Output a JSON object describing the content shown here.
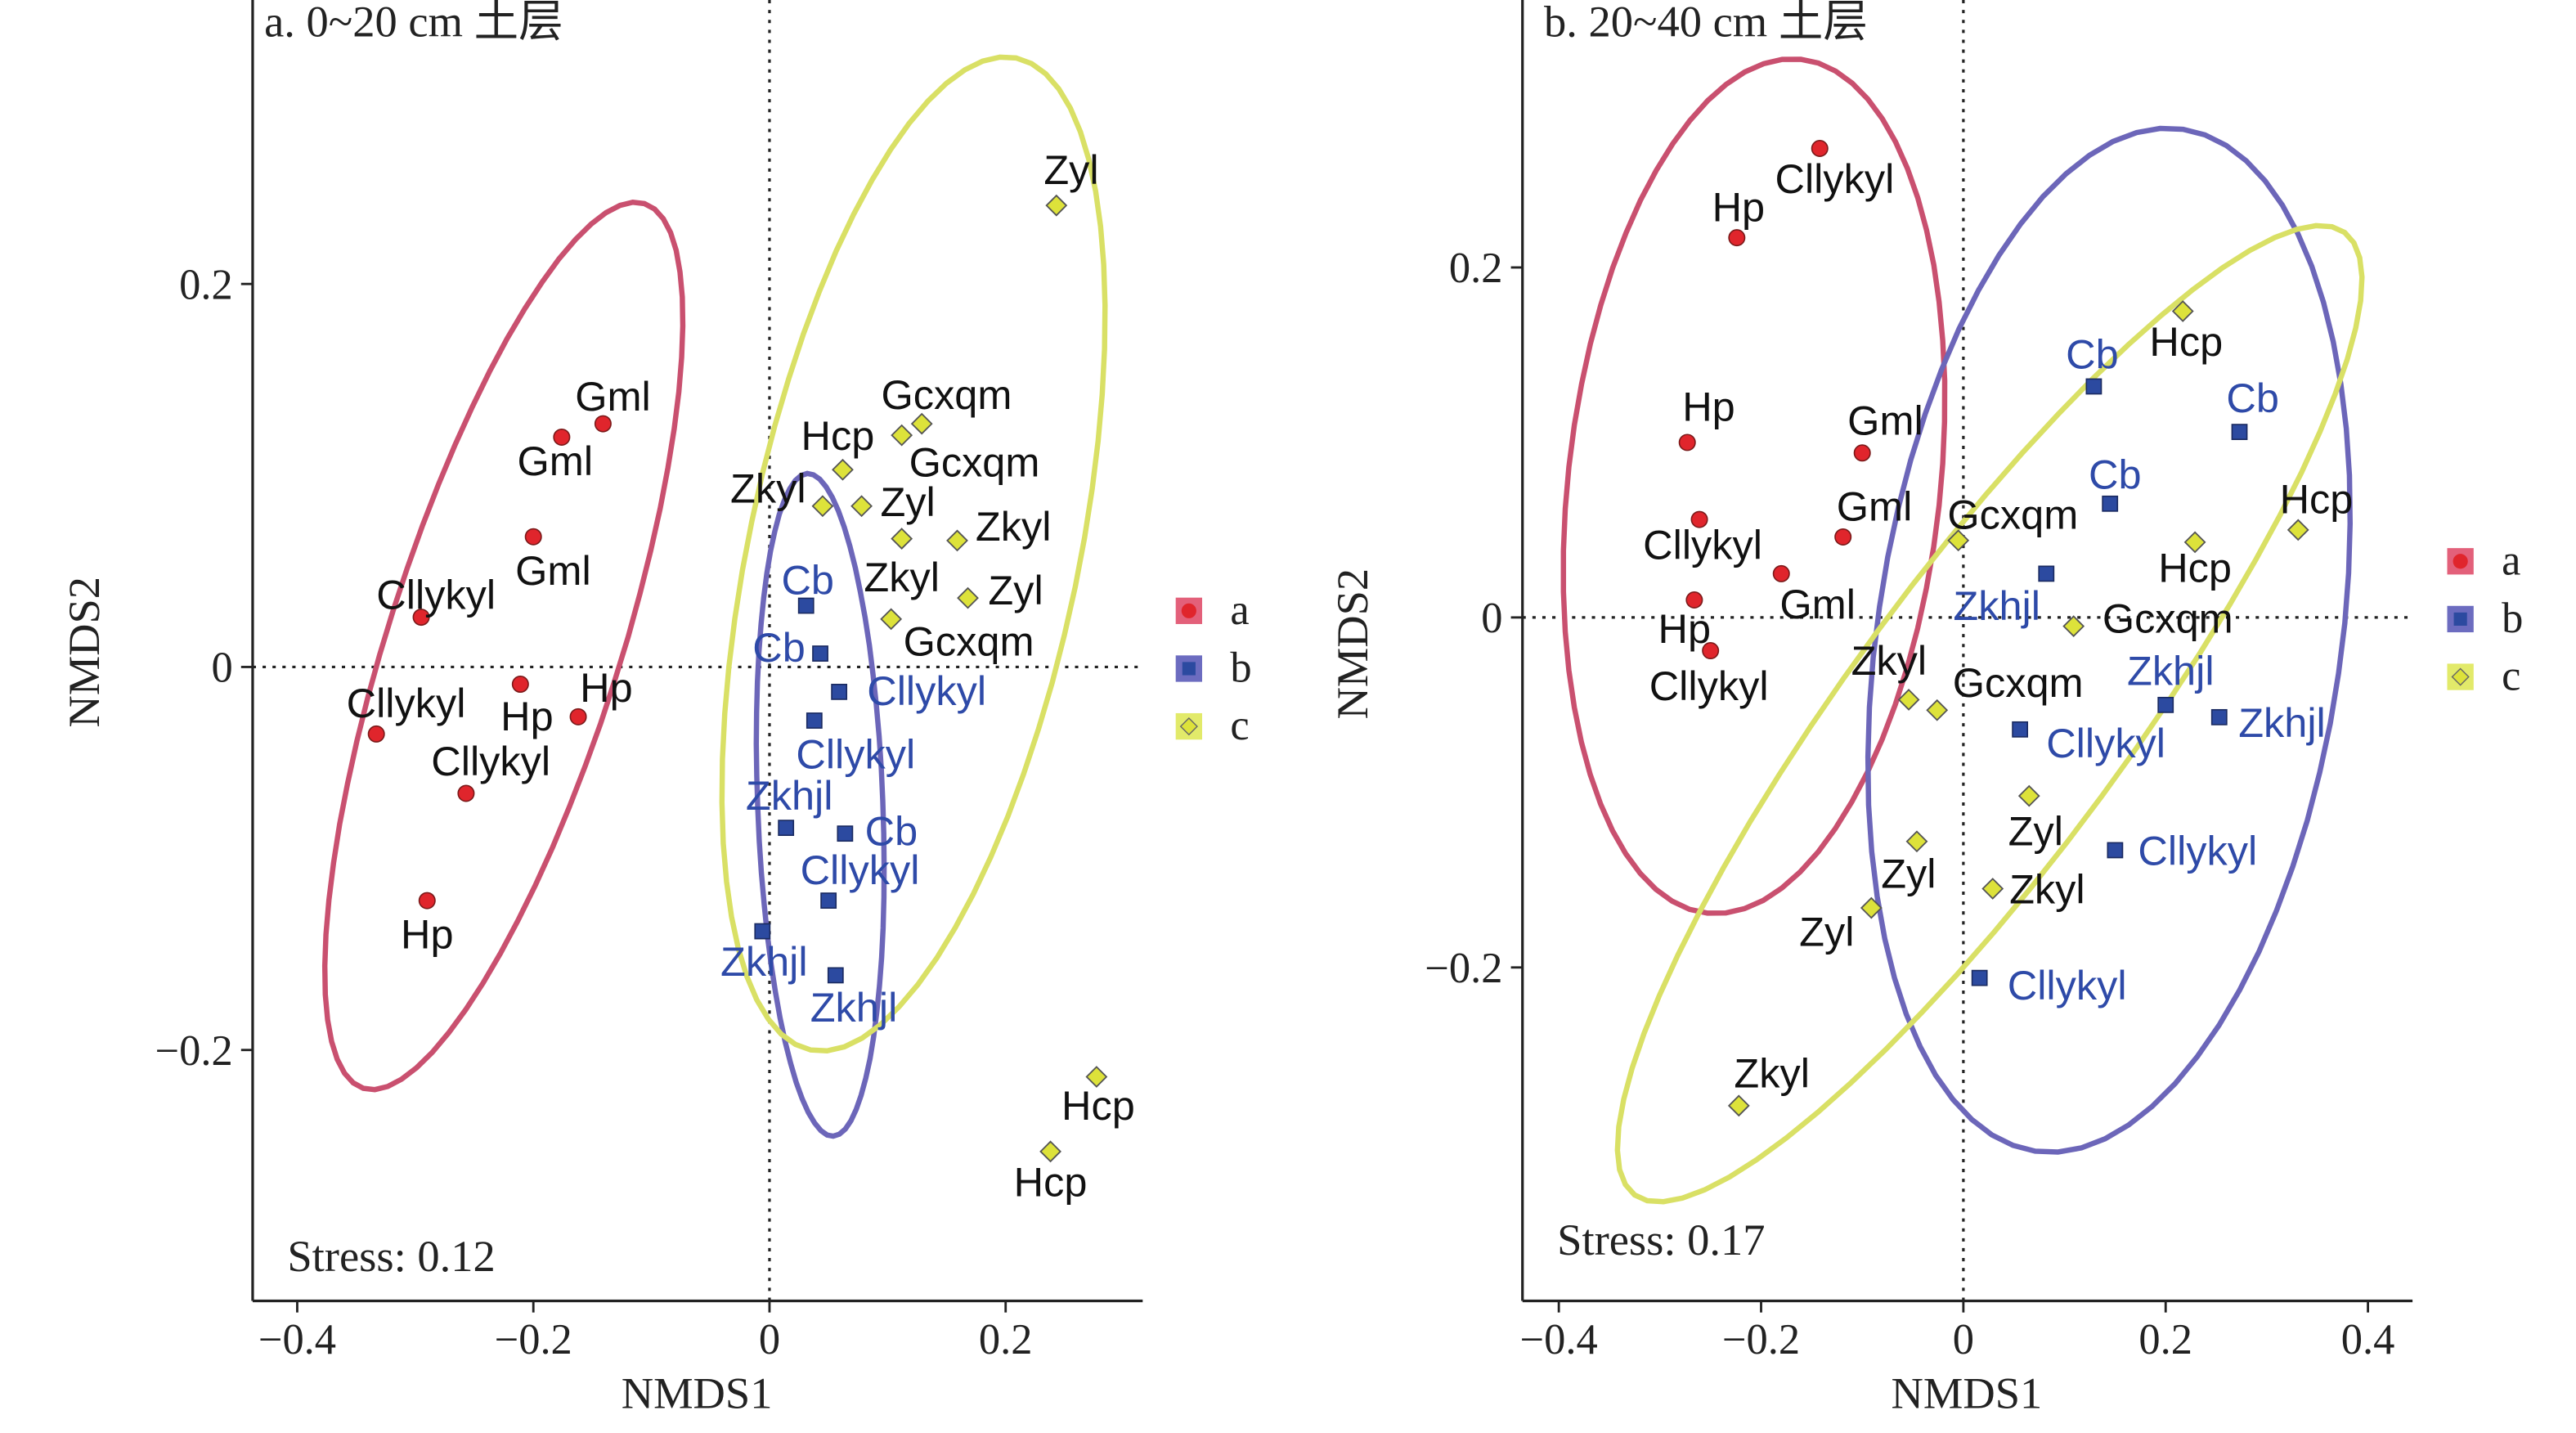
{
  "colors": {
    "a": {
      "point": "#e0252c",
      "ellipse": "#c9506f",
      "legend_bg": "#e3607a",
      "label": "#111111"
    },
    "b": {
      "point": "#2c4aa0",
      "ellipse": "#6c66b9",
      "legend_bg": "#6c6cc0",
      "label": "#2e4aa8"
    },
    "c": {
      "point": "#dde23a",
      "ellipse": "#d9e065",
      "legend_bg": "#e2ea6a",
      "label": "#111111"
    }
  },
  "chart_data": [
    {
      "type": "scatter",
      "title": "a. 0~20 cm 土层",
      "xlabel": "NMDS1",
      "ylabel": "NMDS2",
      "xlim": [
        -0.43,
        0.32
      ],
      "ylim": [
        -0.33,
        0.35
      ],
      "xticks": [
        "−0.4",
        "−0.2",
        "0",
        "0.2"
      ],
      "xtick_values": [
        -0.4,
        -0.2,
        0,
        0.2
      ],
      "yticks": [
        "−0.2",
        "0",
        "0.2"
      ],
      "ytick_values": [
        -0.2,
        0,
        0.2
      ],
      "annotation": "Stress: 0.12",
      "legend": [
        "a",
        "b",
        "c"
      ],
      "legend_position": "right",
      "series": [
        {
          "name": "a",
          "marker": "circle",
          "points": [
            {
              "label": "Gml",
              "x": -0.141,
              "y": 0.127
            },
            {
              "label": "Gml",
              "x": -0.176,
              "y": 0.12
            },
            {
              "label": "Gml",
              "x": -0.2,
              "y": 0.068
            },
            {
              "label": "Cllykyl",
              "x": -0.295,
              "y": 0.026
            },
            {
              "label": "Hp",
              "x": -0.211,
              "y": -0.009
            },
            {
              "label": "Hp",
              "x": -0.162,
              "y": -0.026
            },
            {
              "label": "Cllykyl",
              "x": -0.333,
              "y": -0.035
            },
            {
              "label": "Cllykyl",
              "x": -0.257,
              "y": -0.066
            },
            {
              "label": "Hp",
              "x": -0.29,
              "y": -0.122
            }
          ],
          "ellipse": {
            "center": [
              -0.225,
              0.011
            ],
            "axis1": [
              0.119,
              0.231
            ],
            "axis2": [
              0.094,
              -0.018
            ]
          }
        },
        {
          "name": "b",
          "marker": "square",
          "points": [
            {
              "label": "Cb",
              "x": 0.031,
              "y": 0.032
            },
            {
              "label": "Cb",
              "x": 0.043,
              "y": 0.007
            },
            {
              "label": "Cllykyl",
              "x": 0.059,
              "y": -0.013
            },
            {
              "label": "Cllykyl",
              "x": 0.038,
              "y": -0.028
            },
            {
              "label": "Zkhjl",
              "x": 0.014,
              "y": -0.084
            },
            {
              "label": "Cb",
              "x": 0.064,
              "y": -0.087
            },
            {
              "label": "Cllykyl",
              "x": 0.05,
              "y": -0.122
            },
            {
              "label": "Zkhjl",
              "x": -0.006,
              "y": -0.138
            },
            {
              "label": "Zkhjl",
              "x": 0.056,
              "y": -0.161
            }
          ],
          "ellipse": {
            "center": [
              0.043,
              -0.072
            ],
            "axis1": [
              -0.011,
              0.173
            ],
            "axis2": [
              0.053,
              0.002
            ]
          }
        },
        {
          "name": "c",
          "marker": "diamond",
          "points": [
            {
              "label": "Zyl",
              "x": 0.243,
              "y": 0.241
            },
            {
              "label": "Gcxqm",
              "x": 0.129,
              "y": 0.127
            },
            {
              "label": "Gcxqm",
              "x": 0.112,
              "y": 0.121
            },
            {
              "label": "Hcp",
              "x": 0.062,
              "y": 0.103
            },
            {
              "label": "Zkyl",
              "x": 0.045,
              "y": 0.084
            },
            {
              "label": "Zyl",
              "x": 0.078,
              "y": 0.084
            },
            {
              "label": "Zkyl",
              "x": 0.112,
              "y": 0.067
            },
            {
              "label": "Zkyl",
              "x": 0.159,
              "y": 0.066
            },
            {
              "label": "Zyl",
              "x": 0.168,
              "y": 0.036
            },
            {
              "label": "Gcxqm",
              "x": 0.103,
              "y": 0.025
            },
            {
              "label": "Hcp",
              "x": 0.277,
              "y": -0.214
            },
            {
              "label": "Hcp",
              "x": 0.238,
              "y": -0.253
            }
          ],
          "ellipse": {
            "center": [
              0.122,
              0.059
            ],
            "axis1": [
              0.087,
              0.259
            ],
            "axis2": [
              0.137,
              -0.017
            ]
          }
        }
      ]
    },
    {
      "type": "scatter",
      "title": "b. 20~40 cm 土层",
      "xlabel": "NMDS1",
      "ylabel": "NMDS2",
      "xlim": [
        -0.437,
        0.443
      ],
      "ylim": [
        -0.39,
        0.353
      ],
      "xticks": [
        "−0.4",
        "−0.2",
        "0",
        "0.2",
        "0.4"
      ],
      "xtick_values": [
        -0.4,
        -0.2,
        0,
        0.2,
        0.4
      ],
      "yticks": [
        "−0.2",
        "0",
        "0.2"
      ],
      "ytick_values": [
        -0.2,
        0,
        0.2
      ],
      "annotation": "Stress: 0.17",
      "legend": [
        "a",
        "b",
        "c"
      ],
      "legend_position": "right",
      "series": [
        {
          "name": "a",
          "marker": "circle",
          "points": [
            {
              "label": "Cllykyl",
              "x": -0.142,
              "y": 0.268
            },
            {
              "label": "Hp",
              "x": -0.224,
              "y": 0.217
            },
            {
              "label": "Hp",
              "x": -0.273,
              "y": 0.1
            },
            {
              "label": "Gml",
              "x": -0.1,
              "y": 0.094
            },
            {
              "label": "Cllykyl",
              "x": -0.261,
              "y": 0.056
            },
            {
              "label": "Gml",
              "x": -0.119,
              "y": 0.046
            },
            {
              "label": "Gml",
              "x": -0.18,
              "y": 0.025
            },
            {
              "label": "Hp",
              "x": -0.266,
              "y": 0.01
            },
            {
              "label": "Cllykyl",
              "x": -0.25,
              "y": -0.019
            }
          ],
          "ellipse": {
            "center": [
              -0.207,
              0.075
            ],
            "axis1": [
              0.046,
              0.244
            ],
            "axis2": [
              0.183,
              -0.011
            ]
          }
        },
        {
          "name": "b",
          "marker": "square",
          "points": [
            {
              "label": "Cb",
              "x": 0.129,
              "y": 0.132
            },
            {
              "label": "Cb",
              "x": 0.273,
              "y": 0.106
            },
            {
              "label": "Cb",
              "x": 0.145,
              "y": 0.065
            },
            {
              "label": "Zkhjl",
              "x": 0.082,
              "y": 0.025
            },
            {
              "label": "Zkhjl",
              "x": 0.2,
              "y": -0.05
            },
            {
              "label": "Zkhjl",
              "x": 0.253,
              "y": -0.057
            },
            {
              "label": "Cllykyl",
              "x": 0.056,
              "y": -0.064
            },
            {
              "label": "Cllykyl",
              "x": 0.15,
              "y": -0.133
            },
            {
              "label": "Cllykyl",
              "x": 0.016,
              "y": -0.206
            }
          ],
          "ellipse": {
            "center": [
              0.144,
              -0.013
            ],
            "axis1": [
              0.073,
              0.292
            ],
            "axis2": [
              0.227,
              -0.019
            ]
          }
        },
        {
          "name": "c",
          "marker": "diamond",
          "points": [
            {
              "label": "Hcp",
              "x": 0.217,
              "y": 0.175
            },
            {
              "label": "Hcp",
              "x": 0.229,
              "y": 0.043
            },
            {
              "label": "Hcp",
              "x": 0.331,
              "y": 0.05
            },
            {
              "label": "Gcxqm",
              "x": -0.005,
              "y": 0.044
            },
            {
              "label": "Gcxqm",
              "x": 0.109,
              "y": -0.005
            },
            {
              "label": "Zkyl",
              "x": -0.054,
              "y": -0.047
            },
            {
              "label": "Gcxqm",
              "x": -0.026,
              "y": -0.053
            },
            {
              "label": "Zyl",
              "x": 0.065,
              "y": -0.102
            },
            {
              "label": "Zyl",
              "x": -0.046,
              "y": -0.128
            },
            {
              "label": "Zkyl",
              "x": 0.029,
              "y": -0.155
            },
            {
              "label": "Zyl",
              "x": -0.091,
              "y": -0.166
            },
            {
              "label": "Zkyl",
              "x": -0.222,
              "y": -0.279
            }
          ],
          "ellipse": {
            "center": [
              0.026,
              -0.055
            ],
            "axis1": [
              0.351,
              0.275
            ],
            "axis2": [
              0.111,
              -0.047
            ]
          }
        }
      ]
    }
  ]
}
